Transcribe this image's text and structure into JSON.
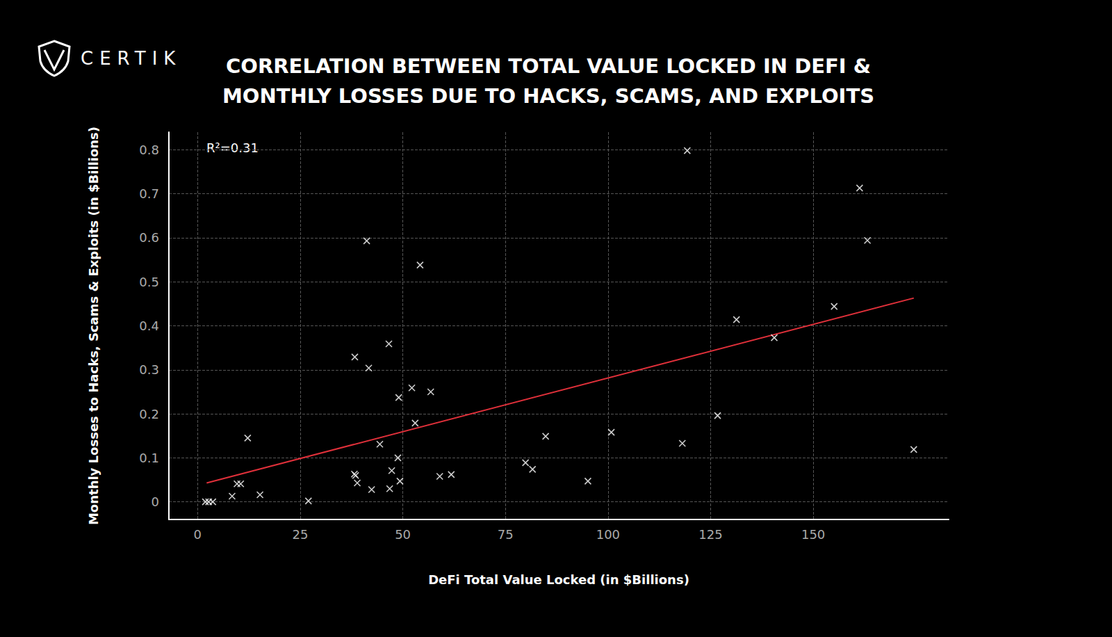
{
  "chart_data": {
    "type": "scatter",
    "brand": "CERTIK",
    "title": "CORRELATION BETWEEN TOTAL VALUE LOCKED IN DEFI &\nMONTHLY LOSSES DUE TO HACKS, SCAMS, AND EXPLOITS",
    "x_label": "DeFi Total Value Locked (in $Billions)",
    "y_label": "Monthly Losses to Hacks, Scams & Exploits (in $Billions)",
    "annotation": "R²=0.31",
    "x": [
      1.9,
      2.7,
      3.7,
      8.4,
      9.6,
      10.5,
      12.2,
      15.2,
      27.0,
      38.3,
      38.2,
      38.5,
      38.9,
      41.2,
      41.7,
      42.4,
      44.4,
      46.6,
      46.8,
      47.3,
      48.8,
      49.0,
      49.3,
      52.2,
      53.0,
      54.2,
      56.8,
      59.0,
      61.8,
      79.9,
      81.6,
      84.8,
      95.1,
      100.8,
      118.1,
      119.3,
      126.7,
      131.3,
      140.5,
      155.1,
      161.3,
      163.2,
      174.5
    ],
    "values": [
      0.0,
      0.0,
      0.0,
      0.013,
      0.041,
      0.041,
      0.145,
      0.016,
      0.002,
      0.329,
      0.063,
      0.06,
      0.043,
      0.593,
      0.304,
      0.028,
      0.131,
      0.359,
      0.03,
      0.071,
      0.1,
      0.237,
      0.047,
      0.259,
      0.179,
      0.538,
      0.25,
      0.058,
      0.062,
      0.089,
      0.074,
      0.149,
      0.047,
      0.158,
      0.133,
      0.798,
      0.196,
      0.414,
      0.373,
      0.444,
      0.713,
      0.594,
      0.119
    ],
    "color": "#ffffff",
    "marker": "x",
    "trendline": {
      "x": [
        2.2,
        174.5
      ],
      "values": [
        0.043,
        0.463
      ],
      "color": "#e0303a",
      "line_style": "solid"
    },
    "xlim": [
      -7,
      183
    ],
    "ylim": [
      -0.04,
      0.84
    ],
    "xticks": [
      0,
      25,
      50,
      75,
      100,
      125,
      150
    ],
    "yticks": [
      0,
      0.1,
      0.2,
      0.3,
      0.4,
      0.5,
      0.6,
      0.7,
      0.8
    ],
    "grid": true
  }
}
